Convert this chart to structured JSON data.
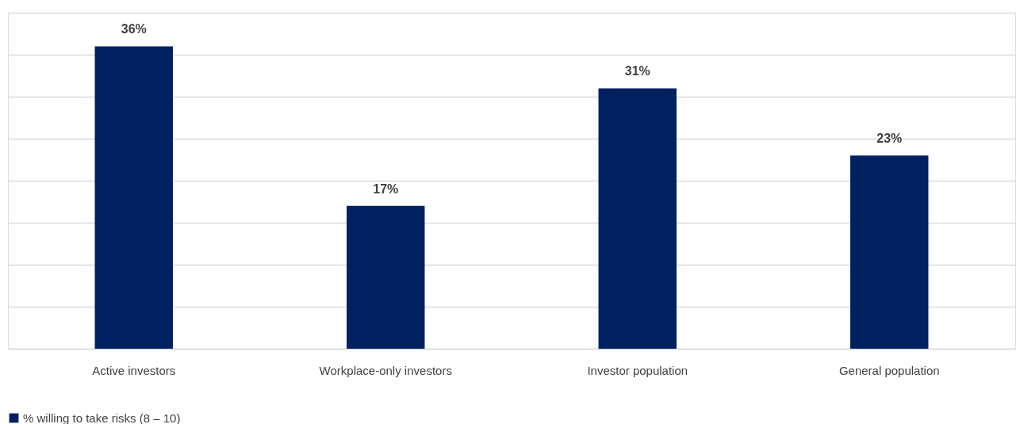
{
  "chart_data": {
    "type": "bar",
    "categories": [
      "Active investors",
      "Workplace-only investors",
      "Investor population",
      "General population"
    ],
    "series": [
      {
        "name": "% willing to take risks (8 – 10)",
        "color": "#002060",
        "values": [
          36,
          17,
          31,
          23
        ],
        "value_labels": [
          "36%",
          "17%",
          "31%",
          "23%"
        ]
      }
    ],
    "ylim": [
      0,
      40
    ],
    "yticks": [
      {
        "value": 0,
        "label": null
      },
      {
        "value": 5,
        "label": null
      },
      {
        "value": 10,
        "label": null
      },
      {
        "value": 15,
        "label": null
      },
      {
        "value": 20,
        "label": null
      },
      {
        "value": 25,
        "label": null
      },
      {
        "value": 30,
        "label": null
      },
      {
        "value": 35,
        "label": null
      },
      {
        "value": 40,
        "label": null
      }
    ],
    "tick_labels": "x",
    "grid": "y",
    "legend": "bottom"
  }
}
